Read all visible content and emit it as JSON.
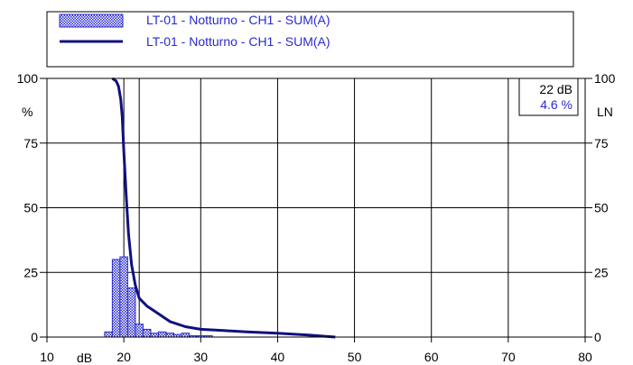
{
  "colors": {
    "bar_fill": "#2a2ad0",
    "curve": "#101080",
    "grid": "#000000",
    "legend_text": "#2a2ad0"
  },
  "legend": {
    "histogram_label": "LT-01 - Notturno - CH1 - SUM(A)",
    "curve_label": "LT-01 - Notturno - CH1 - SUM(A)"
  },
  "cursor": {
    "db_text": "22 dB",
    "pct_text": "4.6 %"
  },
  "chart_data": {
    "type": "bar",
    "title": "",
    "xlabel": "dB",
    "ylabel_left": "%",
    "ylabel_right": "LN",
    "xlim": [
      10,
      80
    ],
    "ylim": [
      0,
      100
    ],
    "x_ticks": [
      10,
      20,
      30,
      40,
      50,
      60,
      70,
      80
    ],
    "y_ticks": [
      0,
      25,
      50,
      75,
      100
    ],
    "y_ticks_right": [
      0,
      25,
      50,
      75,
      100
    ],
    "x_minor_lines": [
      22
    ],
    "grid": true,
    "legend_position": "top",
    "histogram": {
      "name": "LT-01 - Notturno - CH1 - SUM(A)",
      "bin_width": 1,
      "bins": [
        {
          "x": 18,
          "value": 2
        },
        {
          "x": 19,
          "value": 30
        },
        {
          "x": 20,
          "value": 31
        },
        {
          "x": 21,
          "value": 19
        },
        {
          "x": 22,
          "value": 5
        },
        {
          "x": 23,
          "value": 3
        },
        {
          "x": 24,
          "value": 1.5
        },
        {
          "x": 25,
          "value": 2
        },
        {
          "x": 26,
          "value": 1.5
        },
        {
          "x": 27,
          "value": 1
        },
        {
          "x": 28,
          "value": 1.5
        },
        {
          "x": 29,
          "value": 0.5
        },
        {
          "x": 30,
          "value": 0.5
        },
        {
          "x": 31,
          "value": 0.5
        }
      ]
    },
    "curve": {
      "name": "LT-01 - Notturno - CH1 - SUM(A)",
      "points": [
        [
          18.5,
          100
        ],
        [
          19.0,
          99
        ],
        [
          19.3,
          97
        ],
        [
          19.6,
          92
        ],
        [
          19.8,
          85
        ],
        [
          20.0,
          72
        ],
        [
          20.3,
          55
        ],
        [
          20.6,
          40
        ],
        [
          21.0,
          28
        ],
        [
          21.5,
          20
        ],
        [
          22.0,
          15
        ],
        [
          23.0,
          12
        ],
        [
          24.0,
          10
        ],
        [
          25.0,
          8
        ],
        [
          26.0,
          6
        ],
        [
          28.0,
          4
        ],
        [
          30.0,
          3
        ],
        [
          33.0,
          2.5
        ],
        [
          36.0,
          2
        ],
        [
          40.0,
          1.5
        ],
        [
          44.0,
          0.8
        ],
        [
          47.5,
          0
        ]
      ]
    }
  }
}
